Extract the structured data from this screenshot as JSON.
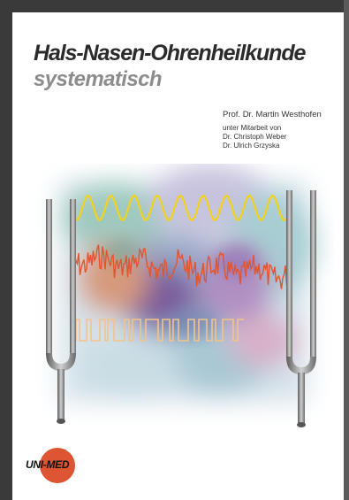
{
  "cover": {
    "title": "Hals-Nasen-Ohrenheilkunde",
    "subtitle": "systematisch",
    "author": "Prof. Dr. Martin Westhofen",
    "collab_intro": "unter Mitarbeit von",
    "collaborators": [
      "Dr. Christoph Weber",
      "Dr. Ulrich Grzyska"
    ],
    "publisher_logo": "UNI-MED",
    "illustration": {
      "icons": [
        "tuning-fork-icon",
        "tuning-fork-icon"
      ],
      "waves": [
        "sine-wave",
        "noise-wave",
        "square-wave"
      ],
      "colors": {
        "sine": "#f2d21b",
        "noise": "#e2552e",
        "square": "#f2c48a",
        "fork": "#8a8a8a",
        "logo": "#dd5533"
      }
    }
  }
}
